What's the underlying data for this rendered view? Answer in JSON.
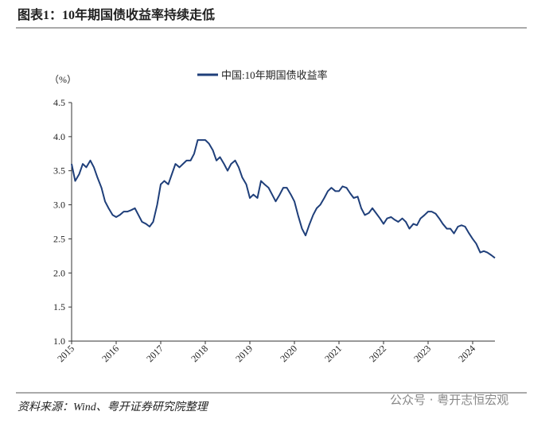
{
  "title": "图表1：10年期国债收益率持续走低",
  "source": "资料来源：Wind、粤开证券研究院整理",
  "watermark": "公众号 · 粤开志恒宏观",
  "chart_data": {
    "type": "line",
    "y_unit": "（%）",
    "legend": "top",
    "xlim": [
      2015,
      2024.5
    ],
    "xticks": [
      2015,
      2016,
      2017,
      2018,
      2019,
      2020,
      2021,
      2022,
      2023,
      2024
    ],
    "ylim": [
      1,
      4.5
    ],
    "yticks": [
      {
        "value": 1,
        "label": "1.0"
      },
      {
        "value": 1.5,
        "label": "1.5"
      },
      {
        "value": 2,
        "label": "2.0"
      },
      {
        "value": 2.5,
        "label": "2.5"
      },
      {
        "value": 3,
        "label": "3.0"
      },
      {
        "value": 3.5,
        "label": "3.5"
      },
      {
        "value": 4,
        "label": "4.0"
      },
      {
        "value": 4.5,
        "label": "4.5"
      }
    ],
    "x": [
      2015,
      2015.08,
      2015.17,
      2015.25,
      2015.33,
      2015.42,
      2015.5,
      2015.58,
      2015.67,
      2015.75,
      2015.83,
      2015.92,
      2016,
      2016.08,
      2016.17,
      2016.25,
      2016.33,
      2016.42,
      2016.5,
      2016.58,
      2016.67,
      2016.75,
      2016.83,
      2016.92,
      2017,
      2017.08,
      2017.17,
      2017.25,
      2017.33,
      2017.42,
      2017.5,
      2017.58,
      2017.67,
      2017.75,
      2017.83,
      2017.92,
      2018,
      2018.08,
      2018.17,
      2018.25,
      2018.33,
      2018.42,
      2018.5,
      2018.58,
      2018.67,
      2018.75,
      2018.83,
      2018.92,
      2019,
      2019.08,
      2019.17,
      2019.25,
      2019.33,
      2019.42,
      2019.5,
      2019.58,
      2019.67,
      2019.75,
      2019.83,
      2019.92,
      2020,
      2020.08,
      2020.17,
      2020.25,
      2020.33,
      2020.42,
      2020.5,
      2020.58,
      2020.67,
      2020.75,
      2020.83,
      2020.92,
      2021,
      2021.08,
      2021.17,
      2021.25,
      2021.33,
      2021.42,
      2021.5,
      2021.58,
      2021.67,
      2021.75,
      2021.83,
      2021.92,
      2022,
      2022.08,
      2022.17,
      2022.25,
      2022.33,
      2022.42,
      2022.5,
      2022.58,
      2022.67,
      2022.75,
      2022.83,
      2022.92,
      2023,
      2023.08,
      2023.17,
      2023.25,
      2023.33,
      2023.42,
      2023.5,
      2023.58,
      2023.67,
      2023.75,
      2023.83,
      2023.92,
      2024,
      2024.08,
      2024.17,
      2024.25,
      2024.33,
      2024.42,
      2024.5
    ],
    "series": [
      {
        "name": "中国:10年期国债收益率",
        "color": "#1f3f7a",
        "values": [
          3.6,
          3.35,
          3.45,
          3.6,
          3.55,
          3.65,
          3.55,
          3.4,
          3.25,
          3.05,
          2.95,
          2.85,
          2.82,
          2.85,
          2.9,
          2.9,
          2.92,
          2.95,
          2.85,
          2.75,
          2.72,
          2.68,
          2.75,
          3.0,
          3.3,
          3.35,
          3.3,
          3.45,
          3.6,
          3.55,
          3.6,
          3.65,
          3.65,
          3.75,
          3.95,
          3.95,
          3.95,
          3.9,
          3.8,
          3.65,
          3.7,
          3.6,
          3.5,
          3.6,
          3.65,
          3.55,
          3.4,
          3.3,
          3.1,
          3.15,
          3.1,
          3.35,
          3.3,
          3.25,
          3.15,
          3.05,
          3.15,
          3.25,
          3.25,
          3.15,
          3.05,
          2.85,
          2.65,
          2.55,
          2.7,
          2.85,
          2.95,
          3.0,
          3.1,
          3.2,
          3.25,
          3.2,
          3.2,
          3.27,
          3.25,
          3.17,
          3.1,
          3.12,
          2.95,
          2.85,
          2.88,
          2.95,
          2.88,
          2.8,
          2.72,
          2.8,
          2.82,
          2.78,
          2.75,
          2.8,
          2.75,
          2.65,
          2.72,
          2.7,
          2.8,
          2.85,
          2.9,
          2.9,
          2.87,
          2.8,
          2.72,
          2.65,
          2.65,
          2.58,
          2.68,
          2.7,
          2.68,
          2.58,
          2.5,
          2.43,
          2.3,
          2.32,
          2.3,
          2.26,
          2.22
        ]
      }
    ]
  }
}
